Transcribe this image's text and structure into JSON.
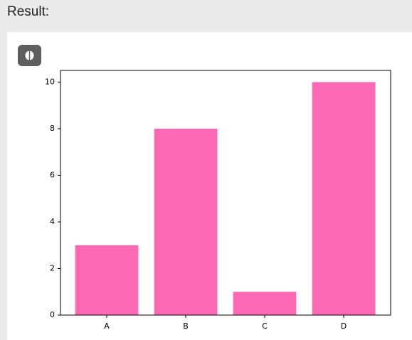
{
  "label": "Result:",
  "chart_data": {
    "type": "bar",
    "categories": [
      "A",
      "B",
      "C",
      "D"
    ],
    "values": [
      3,
      8,
      1,
      10
    ],
    "color": "#ff69b4",
    "ylim": [
      0,
      10.5
    ],
    "yticks": [
      0,
      2,
      4,
      6,
      8,
      10
    ],
    "grid": false
  }
}
